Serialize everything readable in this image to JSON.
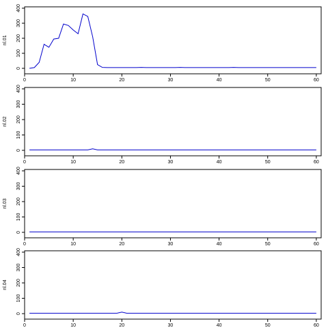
{
  "chart_data": [
    {
      "type": "line",
      "ylabel": "nl.01",
      "xlim": [
        0,
        61
      ],
      "ylim": [
        0,
        400
      ],
      "x_ticks": [
        0,
        10,
        20,
        30,
        40,
        50,
        60
      ],
      "y_ticks": [
        0,
        100,
        200,
        300,
        400
      ],
      "grid": false,
      "series": [
        {
          "color": "#0000cc",
          "x": [
            1,
            2,
            3,
            4,
            5,
            6,
            7,
            8,
            9,
            10,
            11,
            12,
            13,
            14,
            15,
            16,
            17,
            18,
            19,
            20,
            21,
            22,
            23,
            24,
            25,
            26,
            27,
            28,
            29,
            30,
            31,
            32,
            33,
            34,
            35,
            36,
            37,
            38,
            39,
            40,
            41,
            42,
            43,
            44,
            45,
            46,
            47,
            48,
            49,
            50,
            51,
            52,
            53,
            54,
            55,
            56,
            57,
            58,
            59,
            60
          ],
          "values": [
            0,
            5,
            40,
            160,
            140,
            195,
            200,
            295,
            285,
            255,
            230,
            362,
            345,
            210,
            25,
            6,
            5,
            5,
            5,
            5,
            5,
            5,
            5,
            6,
            5,
            5,
            5,
            5,
            5,
            5,
            5,
            6,
            5,
            5,
            5,
            5,
            5,
            5,
            5,
            5,
            5,
            5,
            6,
            5,
            5,
            5,
            5,
            5,
            5,
            5,
            5,
            5,
            5,
            5,
            5,
            5,
            5,
            5,
            5,
            5
          ]
        }
      ]
    },
    {
      "type": "line",
      "ylabel": "nl.02",
      "xlim": [
        0,
        61
      ],
      "ylim": [
        0,
        400
      ],
      "x_ticks": [
        0,
        10,
        20,
        30,
        40,
        50,
        60
      ],
      "y_ticks": [
        0,
        100,
        200,
        300,
        400
      ],
      "grid": false,
      "series": [
        {
          "color": "#0000cc",
          "x": [
            1,
            2,
            3,
            4,
            5,
            6,
            7,
            8,
            9,
            10,
            11,
            12,
            13,
            14,
            15,
            16,
            17,
            18,
            19,
            20,
            21,
            22,
            23,
            24,
            25,
            26,
            27,
            28,
            29,
            30,
            31,
            32,
            33,
            34,
            35,
            36,
            37,
            38,
            39,
            40,
            41,
            42,
            43,
            44,
            45,
            46,
            47,
            48,
            49,
            50,
            51,
            52,
            53,
            54,
            55,
            56,
            57,
            58,
            59,
            60
          ],
          "values": [
            3,
            3,
            3,
            3,
            3,
            3,
            3,
            3,
            3,
            3,
            3,
            3,
            3,
            10,
            3,
            3,
            3,
            3,
            3,
            3,
            3,
            3,
            3,
            3,
            3,
            3,
            3,
            3,
            3,
            3,
            3,
            3,
            3,
            3,
            3,
            3,
            3,
            3,
            3,
            3,
            3,
            3,
            3,
            3,
            3,
            3,
            3,
            3,
            3,
            3,
            3,
            3,
            3,
            3,
            3,
            3,
            3,
            3,
            3,
            3
          ]
        }
      ]
    },
    {
      "type": "line",
      "ylabel": "nl.03",
      "xlim": [
        0,
        61
      ],
      "ylim": [
        0,
        400
      ],
      "x_ticks": [
        0,
        10,
        20,
        30,
        40,
        50,
        60
      ],
      "y_ticks": [
        0,
        100,
        200,
        300,
        400
      ],
      "grid": false,
      "series": [
        {
          "color": "#0000cc",
          "x": [
            1,
            2,
            3,
            4,
            5,
            6,
            7,
            8,
            9,
            10,
            11,
            12,
            13,
            14,
            15,
            16,
            17,
            18,
            19,
            20,
            21,
            22,
            23,
            24,
            25,
            26,
            27,
            28,
            29,
            30,
            31,
            32,
            33,
            34,
            35,
            36,
            37,
            38,
            39,
            40,
            41,
            42,
            43,
            44,
            45,
            46,
            47,
            48,
            49,
            50,
            51,
            52,
            53,
            54,
            55,
            56,
            57,
            58,
            59,
            60
          ],
          "values": [
            3,
            3,
            3,
            3,
            3,
            3,
            3,
            3,
            3,
            3,
            3,
            3,
            3,
            3,
            3,
            3,
            3,
            3,
            3,
            3,
            3,
            3,
            3,
            3,
            3,
            3,
            3,
            3,
            3,
            3,
            3,
            3,
            3,
            3,
            3,
            3,
            3,
            3,
            3,
            3,
            3,
            3,
            3,
            3,
            3,
            3,
            3,
            3,
            3,
            3,
            3,
            3,
            3,
            3,
            3,
            3,
            3,
            3,
            3,
            3
          ]
        }
      ]
    },
    {
      "type": "line",
      "ylabel": "nl.04",
      "xlim": [
        0,
        61
      ],
      "ylim": [
        0,
        400
      ],
      "x_ticks": [
        0,
        10,
        20,
        30,
        40,
        50,
        60
      ],
      "y_ticks": [
        0,
        100,
        200,
        300,
        400
      ],
      "grid": false,
      "series": [
        {
          "color": "#0000cc",
          "x": [
            1,
            2,
            3,
            4,
            5,
            6,
            7,
            8,
            9,
            10,
            11,
            12,
            13,
            14,
            15,
            16,
            17,
            18,
            19,
            20,
            21,
            22,
            23,
            24,
            25,
            26,
            27,
            28,
            29,
            30,
            31,
            32,
            33,
            34,
            35,
            36,
            37,
            38,
            39,
            40,
            41,
            42,
            43,
            44,
            45,
            46,
            47,
            48,
            49,
            50,
            51,
            52,
            53,
            54,
            55,
            56,
            57,
            58,
            59,
            60
          ],
          "values": [
            3,
            3,
            3,
            3,
            3,
            3,
            3,
            3,
            3,
            3,
            3,
            3,
            3,
            3,
            3,
            3,
            3,
            3,
            3,
            10,
            3,
            3,
            3,
            3,
            3,
            3,
            3,
            3,
            3,
            3,
            3,
            3,
            3,
            3,
            3,
            3,
            3,
            3,
            3,
            3,
            3,
            3,
            3,
            3,
            3,
            3,
            3,
            3,
            3,
            3,
            3,
            3,
            3,
            3,
            3,
            3,
            3,
            3,
            3,
            3
          ]
        }
      ]
    }
  ]
}
